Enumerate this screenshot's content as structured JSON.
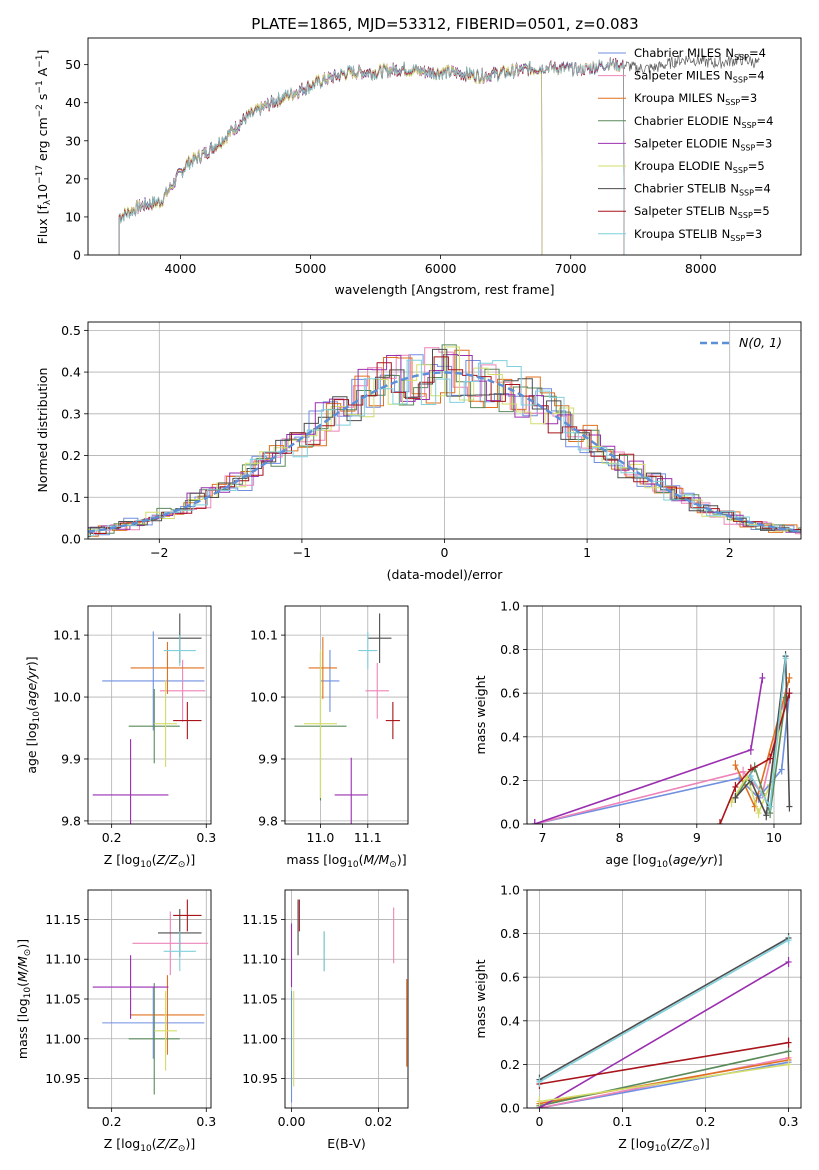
{
  "figure": {
    "title": "PLATE=1865, MJD=53312, FIBERID=0501, z=0.083"
  },
  "series_colors": [
    "#6f8fe0",
    "#ee84b9",
    "#e1711f",
    "#5a8a5a",
    "#9a2fb0",
    "#d2dd6a",
    "#4d4d4d",
    "#a8141b",
    "#7fd0dc"
  ],
  "chart_data": [
    {
      "id": "spectrum",
      "type": "line",
      "xlabel": "wavelength [Angstrom, rest frame]",
      "ylabel": "Flux [f_λ 10^-17 erg cm^-2 s^-1 A^-1]",
      "xlim": [
        3290,
        8770
      ],
      "ylim": [
        0,
        57
      ],
      "xticks": [
        4000,
        5000,
        6000,
        7000,
        8000
      ],
      "yticks": [
        0,
        10,
        20,
        30,
        40,
        50
      ],
      "grid": false,
      "legend_position": "right",
      "legend": [
        {
          "model": "Chabrier MILES",
          "nssp": "N",
          "sub": "SSP",
          "val": "=4"
        },
        {
          "model": "Salpeter MILES",
          "nssp": "N",
          "sub": "SSP",
          "val": "=4"
        },
        {
          "model": "Kroupa MILES",
          "nssp": "N",
          "sub": "SSP",
          "val": "=3"
        },
        {
          "model": "Chabrier ELODIE",
          "nssp": "N",
          "sub": "SSP",
          "val": "=4"
        },
        {
          "model": "Salpeter ELODIE",
          "nssp": "N",
          "sub": "SSP",
          "val": "=3"
        },
        {
          "model": "Kroupa ELODIE",
          "nssp": "N",
          "sub": "SSP",
          "val": "=5"
        },
        {
          "model": "Chabrier STELIB",
          "nssp": "N",
          "sub": "SSP",
          "val": "=4"
        },
        {
          "model": "Salpeter STELIB",
          "nssp": "N",
          "sub": "SSP",
          "val": "=5"
        },
        {
          "model": "Kroupa STELIB",
          "nssp": "N",
          "sub": "SSP",
          "val": "=3"
        }
      ],
      "continuum": [
        [
          3530,
          10
        ],
        [
          3700,
          13
        ],
        [
          3850,
          14
        ],
        [
          3950,
          19
        ],
        [
          4050,
          24
        ],
        [
          4200,
          27
        ],
        [
          4350,
          31
        ],
        [
          4500,
          36
        ],
        [
          4700,
          40
        ],
        [
          4900,
          43
        ],
        [
          5100,
          46
        ],
        [
          5300,
          48
        ],
        [
          5500,
          48
        ],
        [
          5700,
          49
        ],
        [
          5900,
          48
        ],
        [
          6100,
          48
        ],
        [
          6300,
          47
        ],
        [
          6500,
          48
        ],
        [
          6700,
          49
        ],
        [
          6900,
          49
        ],
        [
          7100,
          49
        ],
        [
          7300,
          50
        ],
        [
          7500,
          49
        ],
        [
          7700,
          50
        ],
        [
          7900,
          51
        ],
        [
          8100,
          51
        ],
        [
          8300,
          51
        ],
        [
          8450,
          50
        ]
      ],
      "ranges": {
        "Chabrier MILES": [
          3530,
          7410
        ],
        "Salpeter MILES": [
          3530,
          7410
        ],
        "Kroupa MILES": [
          3530,
          7410
        ],
        "Chabrier ELODIE": [
          3530,
          6780
        ],
        "Salpeter ELODIE": [
          3530,
          6780
        ],
        "Kroupa ELODIE": [
          3530,
          6780
        ],
        "Chabrier STELIB": [
          3530,
          8450
        ],
        "Salpeter STELIB": [
          3530,
          7410
        ],
        "Kroupa STELIB": [
          3530,
          7410
        ]
      }
    },
    {
      "id": "residuals",
      "type": "histogram",
      "xlabel": "(data-model)/error",
      "ylabel": "Normed distribution",
      "xlim": [
        -2.5,
        2.5
      ],
      "ylim": [
        0,
        0.52
      ],
      "xticks": [
        -2,
        -1,
        0,
        1,
        2
      ],
      "yticks": [
        0.0,
        0.1,
        0.2,
        0.3,
        0.4,
        0.5
      ],
      "grid": true,
      "legend_position": "top-right",
      "reference_label": "N(0, 1)",
      "bin_width": 0.1,
      "histogram_style": "step"
    },
    {
      "id": "z_vs_age",
      "type": "errorbar",
      "xlabel": "Z [log10(Z/Z☉)]",
      "ylabel": "age [log10(age/yr)]",
      "xlim": [
        0.175,
        0.305
      ],
      "ylim": [
        9.795,
        10.147
      ],
      "xticks": [
        0.2,
        0.3
      ],
      "yticks": [
        9.8,
        9.9,
        10.0,
        10.1
      ],
      "grid": true,
      "points": [
        {
          "x": 0.244,
          "y": 10.026,
          "xerr": 0.054,
          "yerr": 0.08
        },
        {
          "x": 0.275,
          "y": 10.01,
          "xerr": 0.024,
          "yerr": 0.05
        },
        {
          "x": 0.259,
          "y": 10.047,
          "xerr": 0.039,
          "yerr": 0.042
        },
        {
          "x": 0.245,
          "y": 9.953,
          "xerr": 0.027,
          "yerr": 0.06
        },
        {
          "x": 0.22,
          "y": 9.842,
          "xerr": 0.04,
          "yerr": 0.09
        },
        {
          "x": 0.257,
          "y": 9.957,
          "xerr": 0.012,
          "yerr": 0.07
        },
        {
          "x": 0.272,
          "y": 10.095,
          "xerr": 0.023,
          "yerr": 0.04
        },
        {
          "x": 0.28,
          "y": 9.962,
          "xerr": 0.015,
          "yerr": 0.03
        },
        {
          "x": 0.272,
          "y": 10.075,
          "xerr": 0.017,
          "yerr": 0.025
        }
      ]
    },
    {
      "id": "mass_vs_age",
      "type": "errorbar",
      "xlabel": "mass [log10(M/M☉)]",
      "ylabel": "",
      "xlim": [
        10.925,
        11.185
      ],
      "ylim": [
        9.795,
        10.147
      ],
      "xticks": [
        11.0,
        11.1
      ],
      "yticks": [
        9.8,
        9.9,
        10.0,
        10.1
      ],
      "grid": true,
      "points": [
        {
          "x": 11.02,
          "y": 10.026,
          "xerr": 0.02,
          "yerr": 0.05
        },
        {
          "x": 11.12,
          "y": 10.01,
          "xerr": 0.025,
          "yerr": 0.045
        },
        {
          "x": 11.005,
          "y": 10.047,
          "xerr": 0.03,
          "yerr": 0.05
        },
        {
          "x": 11.0,
          "y": 9.953,
          "xerr": 0.055,
          "yerr": 0.12
        },
        {
          "x": 11.065,
          "y": 9.842,
          "xerr": 0.035,
          "yerr": 0.06
        },
        {
          "x": 11.0,
          "y": 9.957,
          "xerr": 0.035,
          "yerr": 0.12
        },
        {
          "x": 11.125,
          "y": 10.095,
          "xerr": 0.025,
          "yerr": 0.04
        },
        {
          "x": 11.153,
          "y": 9.962,
          "xerr": 0.015,
          "yerr": 0.03
        },
        {
          "x": 11.1,
          "y": 10.075,
          "xerr": 0.02,
          "yerr": 0.03
        }
      ]
    },
    {
      "id": "age_weights",
      "type": "line",
      "xlabel": "age [log10(age/yr)]",
      "ylabel": "mass weight",
      "xlim": [
        6.8,
        10.35
      ],
      "ylim": [
        0,
        1
      ],
      "xticks": [
        7,
        8,
        9,
        10
      ],
      "yticks": [
        0.0,
        0.2,
        0.4,
        0.6,
        0.8,
        1.0
      ],
      "grid": true,
      "series": [
        {
          "x": [
            6.9,
            9.55,
            9.8,
            10.1,
            10.2
          ],
          "y": [
            0.0,
            0.21,
            0.12,
            0.25,
            0.6
          ]
        },
        {
          "x": [
            6.9,
            9.6,
            9.85,
            10.15
          ],
          "y": [
            0.0,
            0.24,
            0.14,
            0.6
          ]
        },
        {
          "x": [
            9.5,
            9.75,
            10.2
          ],
          "y": [
            0.27,
            0.08,
            0.67
          ]
        },
        {
          "x": [
            9.5,
            9.75,
            9.95,
            10.15
          ],
          "y": [
            0.12,
            0.26,
            0.05,
            0.58
          ]
        },
        {
          "x": [
            6.9,
            9.7,
            9.85
          ],
          "y": [
            0.0,
            0.34,
            0.67
          ]
        },
        {
          "x": [
            9.45,
            9.65,
            9.8,
            9.95,
            10.1
          ],
          "y": [
            0.1,
            0.22,
            0.05,
            0.18,
            0.5
          ]
        },
        {
          "x": [
            9.5,
            9.7,
            9.9,
            10.15,
            10.2
          ],
          "y": [
            0.12,
            0.2,
            0.04,
            0.77,
            0.08
          ]
        },
        {
          "x": [
            9.3,
            9.5,
            9.7,
            9.95,
            10.2
          ],
          "y": [
            0.0,
            0.17,
            0.25,
            0.3,
            0.6
          ]
        },
        {
          "x": [
            9.7,
            9.95,
            10.15
          ],
          "y": [
            0.22,
            0.08,
            0.76
          ]
        }
      ]
    },
    {
      "id": "z_vs_mass",
      "type": "errorbar",
      "xlabel": "Z [log10(Z/Z☉)]",
      "ylabel": "mass [log10(M/M☉)]",
      "xlim": [
        0.175,
        0.305
      ],
      "ylim": [
        10.913,
        11.187
      ],
      "xticks": [
        0.2,
        0.3
      ],
      "yticks": [
        10.95,
        11.0,
        11.05,
        11.1,
        11.15
      ],
      "grid": true,
      "points": [
        {
          "x": 0.244,
          "y": 11.02,
          "xerr": 0.054,
          "yerr": 0.045
        },
        {
          "x": 0.262,
          "y": 11.12,
          "xerr": 0.04,
          "yerr": 0.04
        },
        {
          "x": 0.259,
          "y": 11.03,
          "xerr": 0.039,
          "yerr": 0.05
        },
        {
          "x": 0.245,
          "y": 11.0,
          "xerr": 0.027,
          "yerr": 0.07
        },
        {
          "x": 0.22,
          "y": 11.065,
          "xerr": 0.04,
          "yerr": 0.04
        },
        {
          "x": 0.257,
          "y": 11.01,
          "xerr": 0.012,
          "yerr": 0.05
        },
        {
          "x": 0.272,
          "y": 11.133,
          "xerr": 0.023,
          "yerr": 0.03
        },
        {
          "x": 0.28,
          "y": 11.155,
          "xerr": 0.015,
          "yerr": 0.02
        },
        {
          "x": 0.272,
          "y": 11.11,
          "xerr": 0.017,
          "yerr": 0.025
        }
      ]
    },
    {
      "id": "ebv_vs_mass",
      "type": "errorbar",
      "xlabel": "E(B-V)",
      "ylabel": "",
      "xlim": [
        -0.0015,
        0.0268
      ],
      "ylim": [
        10.913,
        11.187
      ],
      "xticks": [
        0.0,
        0.02
      ],
      "yticks": [
        10.95,
        11.0,
        11.05,
        11.1,
        11.15
      ],
      "grid": true,
      "points": [
        {
          "x": 0.0,
          "y": 10.99,
          "xerr": 0,
          "yerr": 0.07
        },
        {
          "x": 0.0235,
          "y": 11.13,
          "xerr": 0,
          "yerr": 0.035
        },
        {
          "x": 0.0265,
          "y": 11.02,
          "xerr": 0,
          "yerr": 0.055
        },
        {
          "x": 0.0075,
          "y": 11.11,
          "xerr": 0,
          "yerr": 0.025
        },
        {
          "x": 0.0,
          "y": 11.105,
          "xerr": 0,
          "yerr": 0.04
        },
        {
          "x": 0.0005,
          "y": 11.0,
          "xerr": 0,
          "yerr": 0.06
        },
        {
          "x": 0.0015,
          "y": 11.14,
          "xerr": 0,
          "yerr": 0.035
        },
        {
          "x": 0.0018,
          "y": 11.155,
          "xerr": 0,
          "yerr": 0.02
        },
        {
          "x": 0.0075,
          "y": 11.11,
          "xerr": 0,
          "yerr": 0.025
        }
      ]
    },
    {
      "id": "z_weights",
      "type": "line",
      "xlabel": "Z [log10(Z/Z☉)]",
      "ylabel": "mass weight",
      "xlim": [
        -0.015,
        0.315
      ],
      "ylim": [
        0,
        1
      ],
      "xticks": [
        0.0,
        0.1,
        0.2,
        0.3
      ],
      "yticks": [
        0.0,
        0.2,
        0.4,
        0.6,
        0.8,
        1.0
      ],
      "grid": true,
      "series": [
        {
          "x": [
            0.0,
            0.3
          ],
          "y": [
            0.0,
            0.21
          ]
        },
        {
          "x": [
            0.0,
            0.3
          ],
          "y": [
            0.0,
            0.23
          ]
        },
        {
          "x": [
            0.0,
            0.3
          ],
          "y": [
            0.02,
            0.22
          ]
        },
        {
          "x": [
            0.0,
            0.3
          ],
          "y": [
            0.01,
            0.26
          ]
        },
        {
          "x": [
            0.0,
            0.3
          ],
          "y": [
            0.0,
            0.67
          ]
        },
        {
          "x": [
            0.0,
            0.3
          ],
          "y": [
            0.03,
            0.2
          ]
        },
        {
          "x": [
            0.0,
            0.3
          ],
          "y": [
            0.13,
            0.78
          ]
        },
        {
          "x": [
            0.0,
            0.3
          ],
          "y": [
            0.11,
            0.3
          ]
        },
        {
          "x": [
            0.0,
            0.3
          ],
          "y": [
            0.12,
            0.77
          ]
        }
      ]
    }
  ]
}
